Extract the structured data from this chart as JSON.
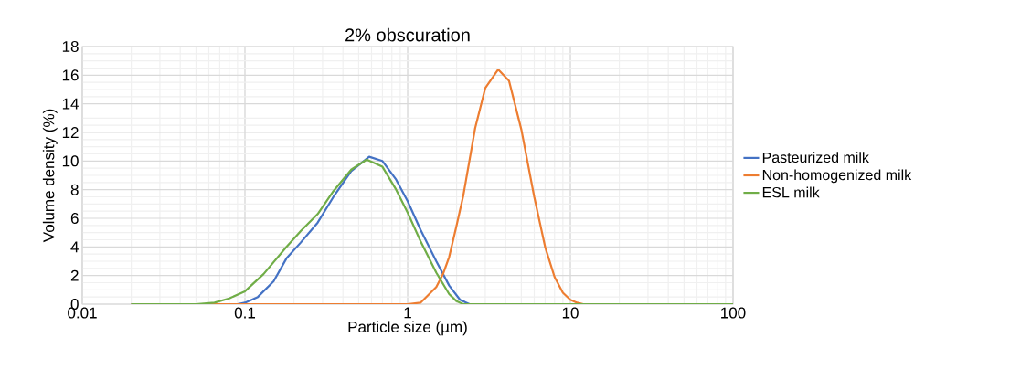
{
  "chart_data": {
    "type": "line",
    "title": "2% obscuration",
    "xlabel": "Particle size (µm)",
    "ylabel": "Volume density (%)",
    "log": "x",
    "xlim": [
      0.01,
      100
    ],
    "xticks": [
      0.01,
      0.1,
      1,
      10,
      100
    ],
    "ylim": [
      0,
      18
    ],
    "yticks": [
      0,
      2,
      4,
      6,
      8,
      10,
      12,
      14,
      16,
      18
    ],
    "grid": true,
    "legend": "right",
    "marker": "none",
    "line_style": "solid",
    "series": [
      {
        "name": "Pasteurized milk",
        "color": "#4472c4",
        "x": [
          0.02,
          0.05,
          0.09,
          0.1,
          0.12,
          0.15,
          0.18,
          0.22,
          0.28,
          0.35,
          0.45,
          0.58,
          0.7,
          0.85,
          1,
          1.2,
          1.5,
          1.8,
          2.1,
          2.4,
          5,
          100
        ],
        "values": [
          0,
          0,
          0,
          0.1,
          0.5,
          1.6,
          3.2,
          4.3,
          5.7,
          7.5,
          9.3,
          10.3,
          10.0,
          8.7,
          7.2,
          5.2,
          3.0,
          1.3,
          0.3,
          0,
          0,
          0
        ]
      },
      {
        "name": "Non-homogenized milk",
        "color": "#ed7d31",
        "x": [
          0.02,
          0.1,
          1,
          1.2,
          1.5,
          1.65,
          1.8,
          2,
          2.2,
          2.6,
          3,
          3.6,
          4.2,
          5,
          6,
          7,
          8,
          9,
          10,
          11,
          12,
          100
        ],
        "values": [
          0,
          0,
          0,
          0.1,
          1.2,
          2.1,
          3.3,
          5.5,
          7.6,
          12.3,
          15.1,
          16.4,
          15.6,
          12.2,
          7.5,
          4.0,
          1.9,
          0.8,
          0.3,
          0.1,
          0,
          0
        ]
      },
      {
        "name": "ESL milk",
        "color": "#70ad47",
        "x": [
          0.02,
          0.05,
          0.065,
          0.08,
          0.1,
          0.13,
          0.18,
          0.22,
          0.28,
          0.35,
          0.45,
          0.56,
          0.7,
          0.85,
          1,
          1.2,
          1.5,
          1.8,
          2,
          2.2,
          5,
          100
        ],
        "values": [
          0,
          0,
          0.1,
          0.4,
          0.9,
          2.1,
          4.0,
          5.1,
          6.3,
          7.9,
          9.4,
          10.1,
          9.6,
          8.0,
          6.4,
          4.4,
          2.2,
          0.7,
          0.2,
          0,
          0,
          0
        ]
      }
    ]
  }
}
